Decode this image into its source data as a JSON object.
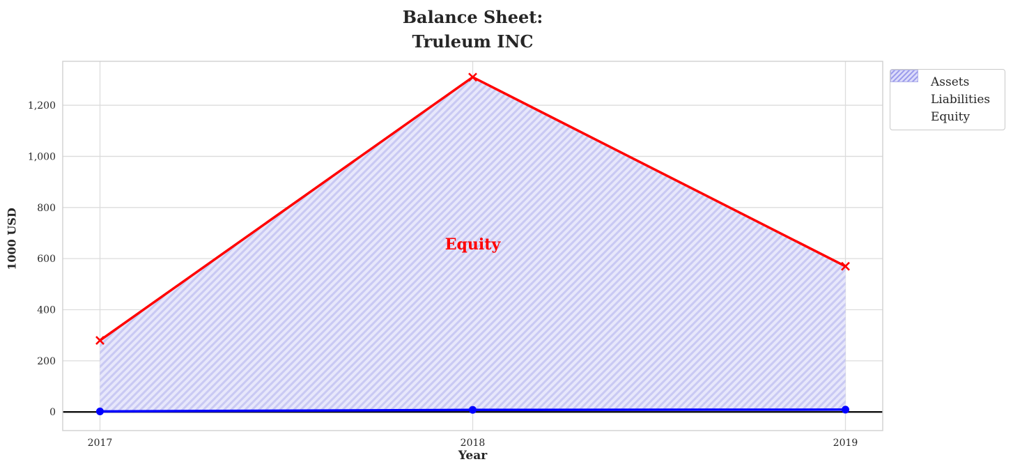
{
  "figure": {
    "background": "#ffffff"
  },
  "chart_data": {
    "type": "line",
    "title": "Balance Sheet:\nTruleum INC",
    "title_line1": "Balance Sheet:",
    "title_line2": "Truleum INC",
    "xlabel": "Year",
    "ylabel": "1000 USD",
    "x": [
      2017,
      2018,
      2019
    ],
    "series": [
      {
        "name": "Assets",
        "values": [
          2,
          8,
          9
        ],
        "color": "#0000ff",
        "marker": "circle",
        "line_width": 3.5
      },
      {
        "name": "Liabilities",
        "values": [
          280,
          1310,
          570
        ],
        "color": "#ff0000",
        "marker": "x",
        "line_width": 3.5
      }
    ],
    "equity_fill": {
      "name": "Equity",
      "between": [
        "Assets",
        "Liabilities"
      ],
      "fill_color": "#e7e7fb",
      "hatch_color": "#c9c9f3",
      "hatch": "/"
    },
    "annotation": {
      "text": "Equity",
      "x": 2018,
      "y": 655,
      "color": "#ff0000"
    },
    "axes": {
      "xticks": [
        2017,
        2018,
        2019
      ],
      "xtick_labels": [
        "2017",
        "2018",
        "2019"
      ],
      "yticks": [
        0,
        200,
        400,
        600,
        800,
        1000,
        1200
      ],
      "ytick_labels": [
        "0",
        "200",
        "400",
        "600",
        "800",
        "1,000",
        "1,200"
      ],
      "xlim": [
        2016.9,
        2019.1
      ],
      "ylim": [
        -73,
        1372
      ],
      "grid": true,
      "grid_color": "#dcdcdc",
      "border_color": "#cfcfcf",
      "zero_line_color": "#000000",
      "tick_color": "#262626"
    },
    "legend": {
      "position": "outside-top-right",
      "entries": [
        {
          "label": "Assets",
          "type": "line-circle",
          "color": "#0000ff"
        },
        {
          "label": "Liabilities",
          "type": "line-x",
          "color": "#ff0000"
        },
        {
          "label": "Equity",
          "type": "hatch-patch",
          "fill_color": "#dcdcfa",
          "hatch_color": "#9a9aec"
        }
      ]
    }
  }
}
